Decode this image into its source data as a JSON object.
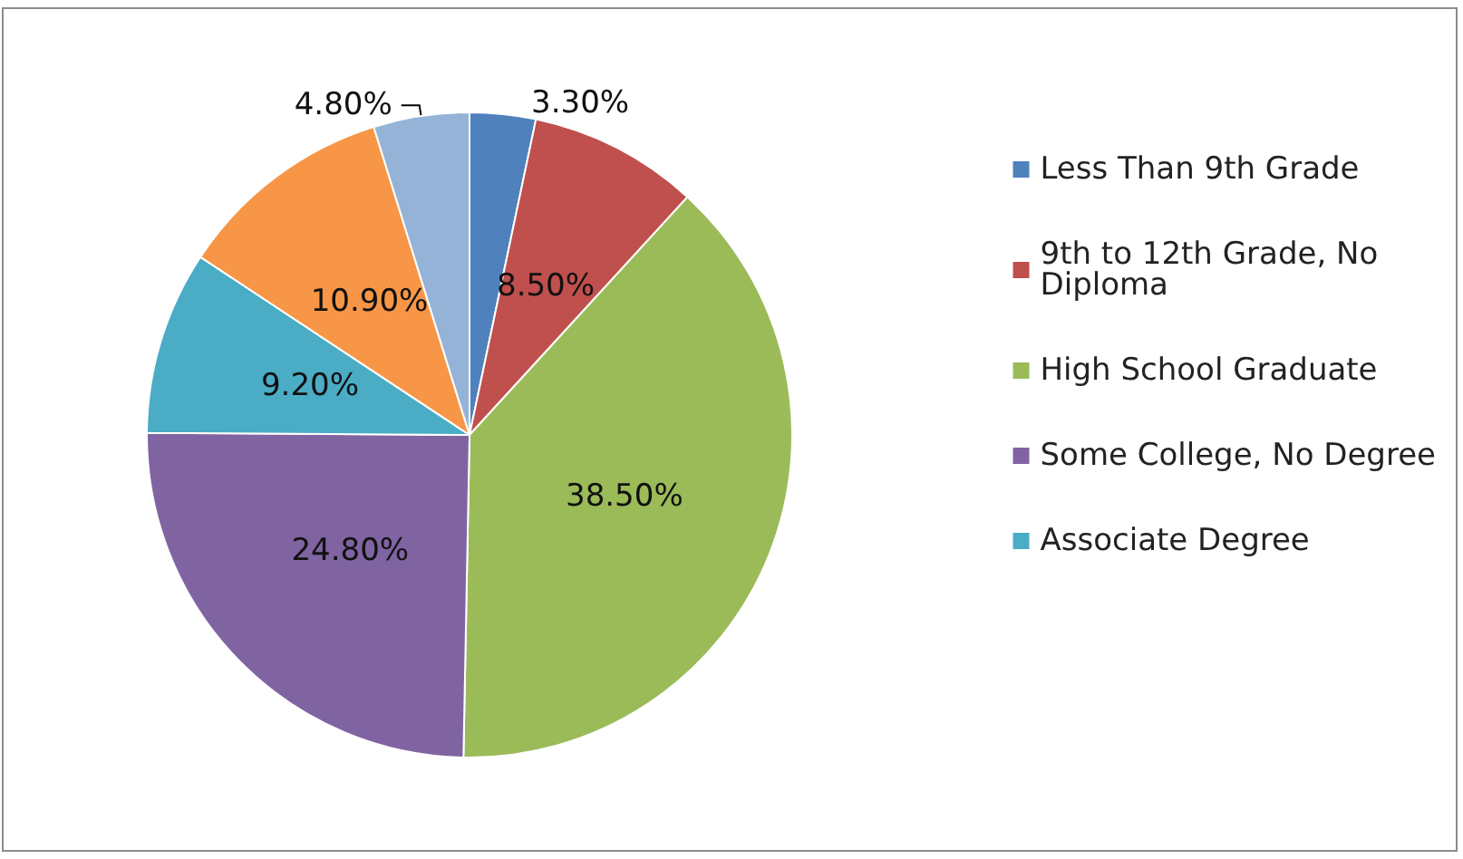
{
  "chart_data": {
    "type": "pie",
    "categories": [
      "Less Than 9th Grade",
      "9th to 12th Grade, No Diploma",
      "High School Graduate",
      "Some College, No Degree",
      "Associate Degree",
      null,
      null
    ],
    "values": [
      3.3,
      8.5,
      38.5,
      24.8,
      9.2,
      10.9,
      4.8
    ],
    "value_labels": [
      "3.30%",
      "8.50%",
      "38.50%",
      "24.80%",
      "9.20%",
      "10.90%",
      "4.80%"
    ],
    "colors": [
      "#4f81bd",
      "#c0504d",
      "#9bbb59",
      "#8064a2",
      "#4bacc6",
      "#f79646",
      "#95b3d7"
    ],
    "legend": "right"
  }
}
